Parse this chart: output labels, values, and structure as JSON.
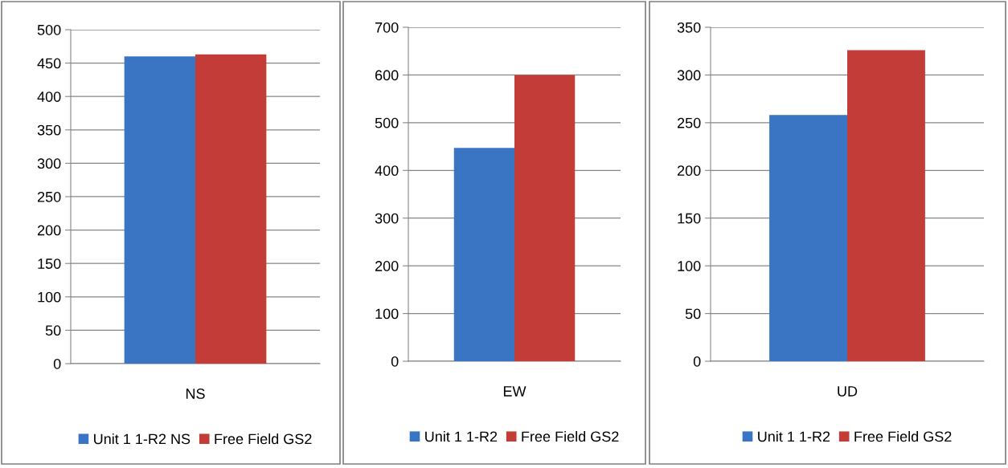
{
  "chart_data": [
    {
      "type": "bar",
      "categories": [
        "NS"
      ],
      "series": [
        {
          "name": "Unit 1 1-R2 NS",
          "color": "#3a75c4",
          "values": [
            460
          ]
        },
        {
          "name": "Free Field GS2",
          "color": "#c43c37",
          "values": [
            463
          ]
        }
      ],
      "ylim": [
        0,
        500
      ],
      "yticks": [
        0,
        50,
        100,
        150,
        200,
        250,
        300,
        350,
        400,
        450,
        500
      ],
      "grid": "y",
      "legend": "bottom"
    },
    {
      "type": "bar",
      "categories": [
        "EW"
      ],
      "series": [
        {
          "name": "Unit 1 1-R2",
          "color": "#3a75c4",
          "values": [
            447
          ]
        },
        {
          "name": "Free Field GS2",
          "color": "#c43c37",
          "values": [
            600
          ]
        }
      ],
      "ylim": [
        0,
        700
      ],
      "yticks": [
        0,
        100,
        200,
        300,
        400,
        500,
        600,
        700
      ],
      "grid": "y",
      "legend": "bottom"
    },
    {
      "type": "bar",
      "categories": [
        "UD"
      ],
      "series": [
        {
          "name": "Unit 1 1-R2",
          "color": "#3a75c4",
          "values": [
            258
          ]
        },
        {
          "name": "Free Field GS2",
          "color": "#c43c37",
          "values": [
            326
          ]
        }
      ],
      "ylim": [
        0,
        350
      ],
      "yticks": [
        0,
        50,
        100,
        150,
        200,
        250,
        300,
        350
      ],
      "grid": "y",
      "legend": "bottom"
    }
  ]
}
